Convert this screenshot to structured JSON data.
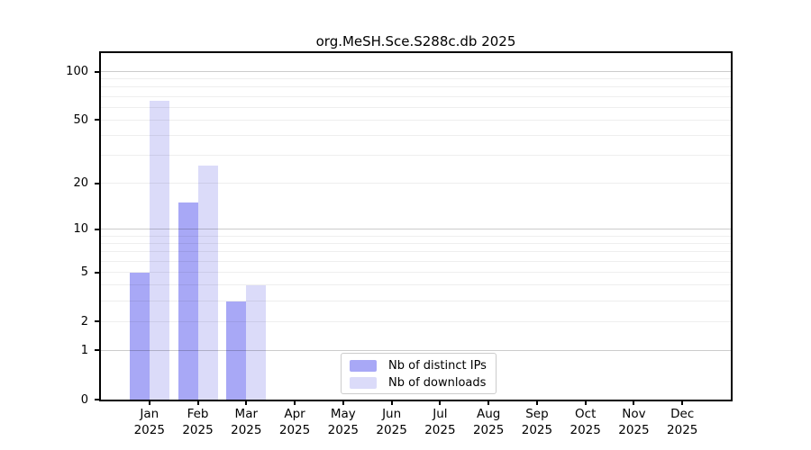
{
  "chart_data": {
    "type": "bar",
    "title": "org.MeSH.Sce.S288c.db 2025",
    "categories": [
      "Jan",
      "Feb",
      "Mar",
      "Apr",
      "May",
      "Jun",
      "Jul",
      "Aug",
      "Sep",
      "Oct",
      "Nov",
      "Dec"
    ],
    "year": "2025",
    "series": [
      {
        "name": "Nb of distinct IPs",
        "color": "#a8a8f6",
        "values": [
          5,
          15,
          3,
          0,
          0,
          0,
          0,
          0,
          0,
          0,
          0,
          0
        ]
      },
      {
        "name": "Nb of downloads",
        "color": "#dbdbf9",
        "values": [
          66,
          26,
          4,
          0,
          0,
          0,
          0,
          0,
          0,
          0,
          0,
          0
        ]
      }
    ],
    "yscale": "log1p",
    "yticks": [
      0,
      1,
      2,
      5,
      10,
      20,
      50,
      100
    ],
    "major_grid_values": [
      1,
      10,
      100
    ],
    "ylim": [
      0,
      130
    ],
    "grid": true,
    "legend_position": "lower center inside",
    "axis_color": "#000000",
    "background_color": "#ffffff"
  }
}
